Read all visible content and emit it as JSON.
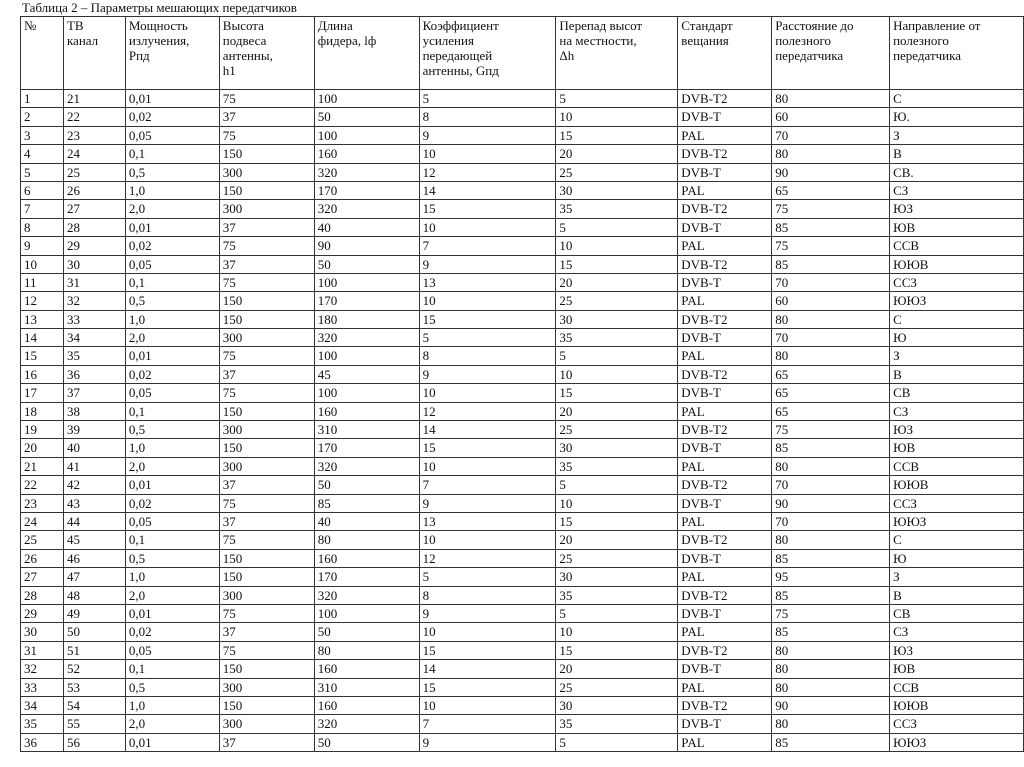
{
  "title": "Таблица 2 – Параметры мешающих передатчиков",
  "table": {
    "header": [
      "№",
      "ТВ\nканал",
      "Мощность\nизлучения,\nРпд",
      "Высота\nподвеса\nантенны,\nh1",
      "Длина\nфидера, lф",
      "Коэффициент\nусиления\nпередающей\nантенны, Gпд",
      "Перепад высот\nна местности,\nΔh",
      "Стандарт\nвещания",
      "Расстояние до\nполезного\nпередатчика",
      "Направление от\nполезного\nпередатчика"
    ],
    "rows": [
      [
        "1",
        "21",
        "0,01",
        "75",
        "100",
        "5",
        "5",
        "DVB-T2",
        "80",
        "С"
      ],
      [
        "2",
        "22",
        "0,02",
        "37",
        "50",
        "8",
        "10",
        "DVB-T",
        "60",
        "Ю."
      ],
      [
        "3",
        "23",
        "0,05",
        "75",
        "100",
        "9",
        "15",
        "PAL",
        "70",
        "З"
      ],
      [
        "4",
        "24",
        "0,1",
        "150",
        "160",
        "10",
        "20",
        "DVB-T2",
        "80",
        "В"
      ],
      [
        "5",
        "25",
        "0,5",
        "300",
        "320",
        "12",
        "25",
        "DVB-T",
        "90",
        "СВ."
      ],
      [
        "6",
        "26",
        "1,0",
        "150",
        "170",
        "14",
        "30",
        "PAL",
        "65",
        "СЗ"
      ],
      [
        "7",
        "27",
        "2,0",
        "300",
        "320",
        "15",
        "35",
        "DVB-T2",
        "75",
        "ЮЗ"
      ],
      [
        "8",
        "28",
        "0,01",
        "37",
        "40",
        "10",
        "5",
        "DVB-T",
        "85",
        "ЮВ"
      ],
      [
        "9",
        "29",
        "0,02",
        "75",
        "90",
        "7",
        "10",
        "PAL",
        "75",
        "ССВ"
      ],
      [
        "10",
        "30",
        "0,05",
        "37",
        "50",
        "9",
        "15",
        "DVB-T2",
        "85",
        "ЮЮВ"
      ],
      [
        "11",
        "31",
        "0,1",
        "75",
        "100",
        "13",
        "20",
        "DVB-T",
        "70",
        "ССЗ"
      ],
      [
        "12",
        "32",
        "0,5",
        "150",
        "170",
        "10",
        "25",
        "PAL",
        "60",
        "ЮЮЗ"
      ],
      [
        "13",
        "33",
        "1,0",
        "150",
        "180",
        "15",
        "30",
        "DVB-T2",
        "80",
        "С"
      ],
      [
        "14",
        "34",
        "2,0",
        "300",
        "320",
        "5",
        "35",
        "DVB-T",
        "70",
        "Ю"
      ],
      [
        "15",
        "35",
        "0,01",
        "75",
        "100",
        "8",
        "5",
        "PAL",
        "80",
        "З"
      ],
      [
        "16",
        "36",
        "0,02",
        "37",
        "45",
        "9",
        "10",
        "DVB-T2",
        "65",
        "В"
      ],
      [
        "17",
        "37",
        "0,05",
        "75",
        "100",
        "10",
        "15",
        "DVB-T",
        "65",
        "СВ"
      ],
      [
        "18",
        "38",
        "0,1",
        "150",
        "160",
        "12",
        "20",
        "PAL",
        "65",
        "СЗ"
      ],
      [
        "19",
        "39",
        "0,5",
        "300",
        "310",
        "14",
        "25",
        "DVB-T2",
        "75",
        "ЮЗ"
      ],
      [
        "20",
        "40",
        "1,0",
        "150",
        "170",
        "15",
        "30",
        "DVB-T",
        "85",
        "ЮВ"
      ],
      [
        "21",
        "41",
        "2,0",
        "300",
        "320",
        "10",
        "35",
        "PAL",
        "80",
        "ССВ"
      ],
      [
        "22",
        "42",
        "0,01",
        "37",
        "50",
        "7",
        "5",
        "DVB-T2",
        "70",
        "ЮЮВ"
      ],
      [
        "23",
        "43",
        "0,02",
        "75",
        "85",
        "9",
        "10",
        "DVB-T",
        "90",
        "ССЗ"
      ],
      [
        "24",
        "44",
        "0,05",
        "37",
        "40",
        "13",
        "15",
        "PAL",
        "70",
        "ЮЮЗ"
      ],
      [
        "25",
        "45",
        "0,1",
        "75",
        "80",
        "10",
        "20",
        "DVB-T2",
        "80",
        "С"
      ],
      [
        "26",
        "46",
        "0,5",
        "150",
        "160",
        "12",
        "25",
        "DVB-T",
        "85",
        "Ю"
      ],
      [
        "27",
        "47",
        "1,0",
        "150",
        "170",
        "5",
        "30",
        "PAL",
        "95",
        "З"
      ],
      [
        "28",
        "48",
        "2,0",
        "300",
        "320",
        "8",
        "35",
        "DVB-T2",
        "85",
        "В"
      ],
      [
        "29",
        "49",
        "0,01",
        "75",
        "100",
        "9",
        "5",
        "DVB-T",
        "75",
        "СВ"
      ],
      [
        "30",
        "50",
        "0,02",
        "37",
        "50",
        "10",
        "10",
        "PAL",
        "85",
        "СЗ"
      ],
      [
        "31",
        "51",
        "0,05",
        "75",
        "80",
        "15",
        "15",
        "DVB-T2",
        "80",
        "ЮЗ"
      ],
      [
        "32",
        "52",
        "0,1",
        "150",
        "160",
        "14",
        "20",
        "DVB-T",
        "80",
        "ЮВ"
      ],
      [
        "33",
        "53",
        "0,5",
        "300",
        "310",
        "15",
        "25",
        "PAL",
        "80",
        "ССВ"
      ],
      [
        "34",
        "54",
        "1,0",
        "150",
        "160",
        "10",
        "30",
        "DVB-T2",
        "90",
        "ЮЮВ"
      ],
      [
        "35",
        "55",
        "2,0",
        "300",
        "320",
        "7",
        "35",
        "DVB-T",
        "80",
        "ССЗ"
      ],
      [
        "36",
        "56",
        "0,01",
        "37",
        "50",
        "9",
        "5",
        "PAL",
        "85",
        "ЮЮЗ"
      ]
    ]
  }
}
